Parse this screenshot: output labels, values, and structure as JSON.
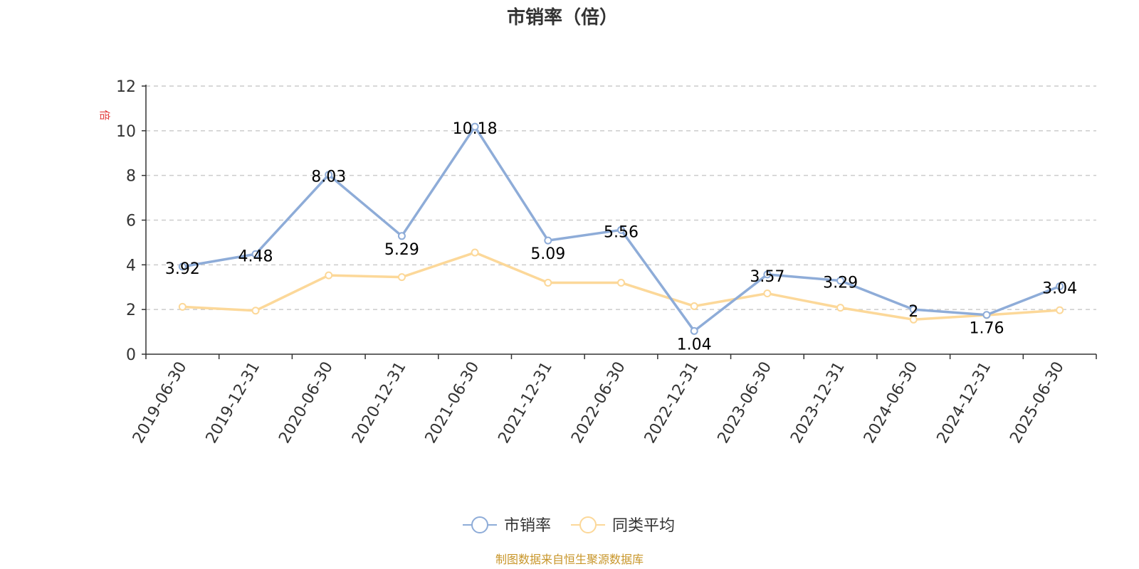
{
  "chart_data": {
    "type": "line",
    "title": "市销率（倍）",
    "ylabel": "倍",
    "ylim": [
      0,
      12
    ],
    "yticks": [
      0,
      2,
      4,
      6,
      8,
      10,
      12
    ],
    "grid": true,
    "legend_position": "bottom",
    "categories": [
      "2019-06-30",
      "2019-12-31",
      "2020-06-30",
      "2020-12-31",
      "2021-06-30",
      "2021-12-31",
      "2022-06-30",
      "2022-12-31",
      "2023-06-30",
      "2023-12-31",
      "2024-06-30",
      "2024-12-31",
      "2025-06-30"
    ],
    "series": [
      {
        "name": "市销率",
        "color": "#8eacd8",
        "values": [
          3.92,
          4.48,
          8.03,
          5.29,
          10.18,
          5.09,
          5.56,
          1.04,
          3.57,
          3.29,
          2,
          1.76,
          3.04
        ],
        "labels": [
          "3.92",
          "4.48",
          "8.03",
          "5.29",
          "10.18",
          "5.09",
          "5.56",
          "1.04",
          "3.57",
          "3.29",
          "2",
          "1.76",
          "3.04"
        ]
      },
      {
        "name": "同类平均",
        "color": "#fcd899",
        "values": [
          2.12,
          1.95,
          3.53,
          3.45,
          4.55,
          3.2,
          3.2,
          2.15,
          2.72,
          2.08,
          1.55,
          1.75,
          1.97
        ]
      }
    ]
  },
  "footer": {
    "source": "制图数据来自恒生聚源数据库"
  }
}
